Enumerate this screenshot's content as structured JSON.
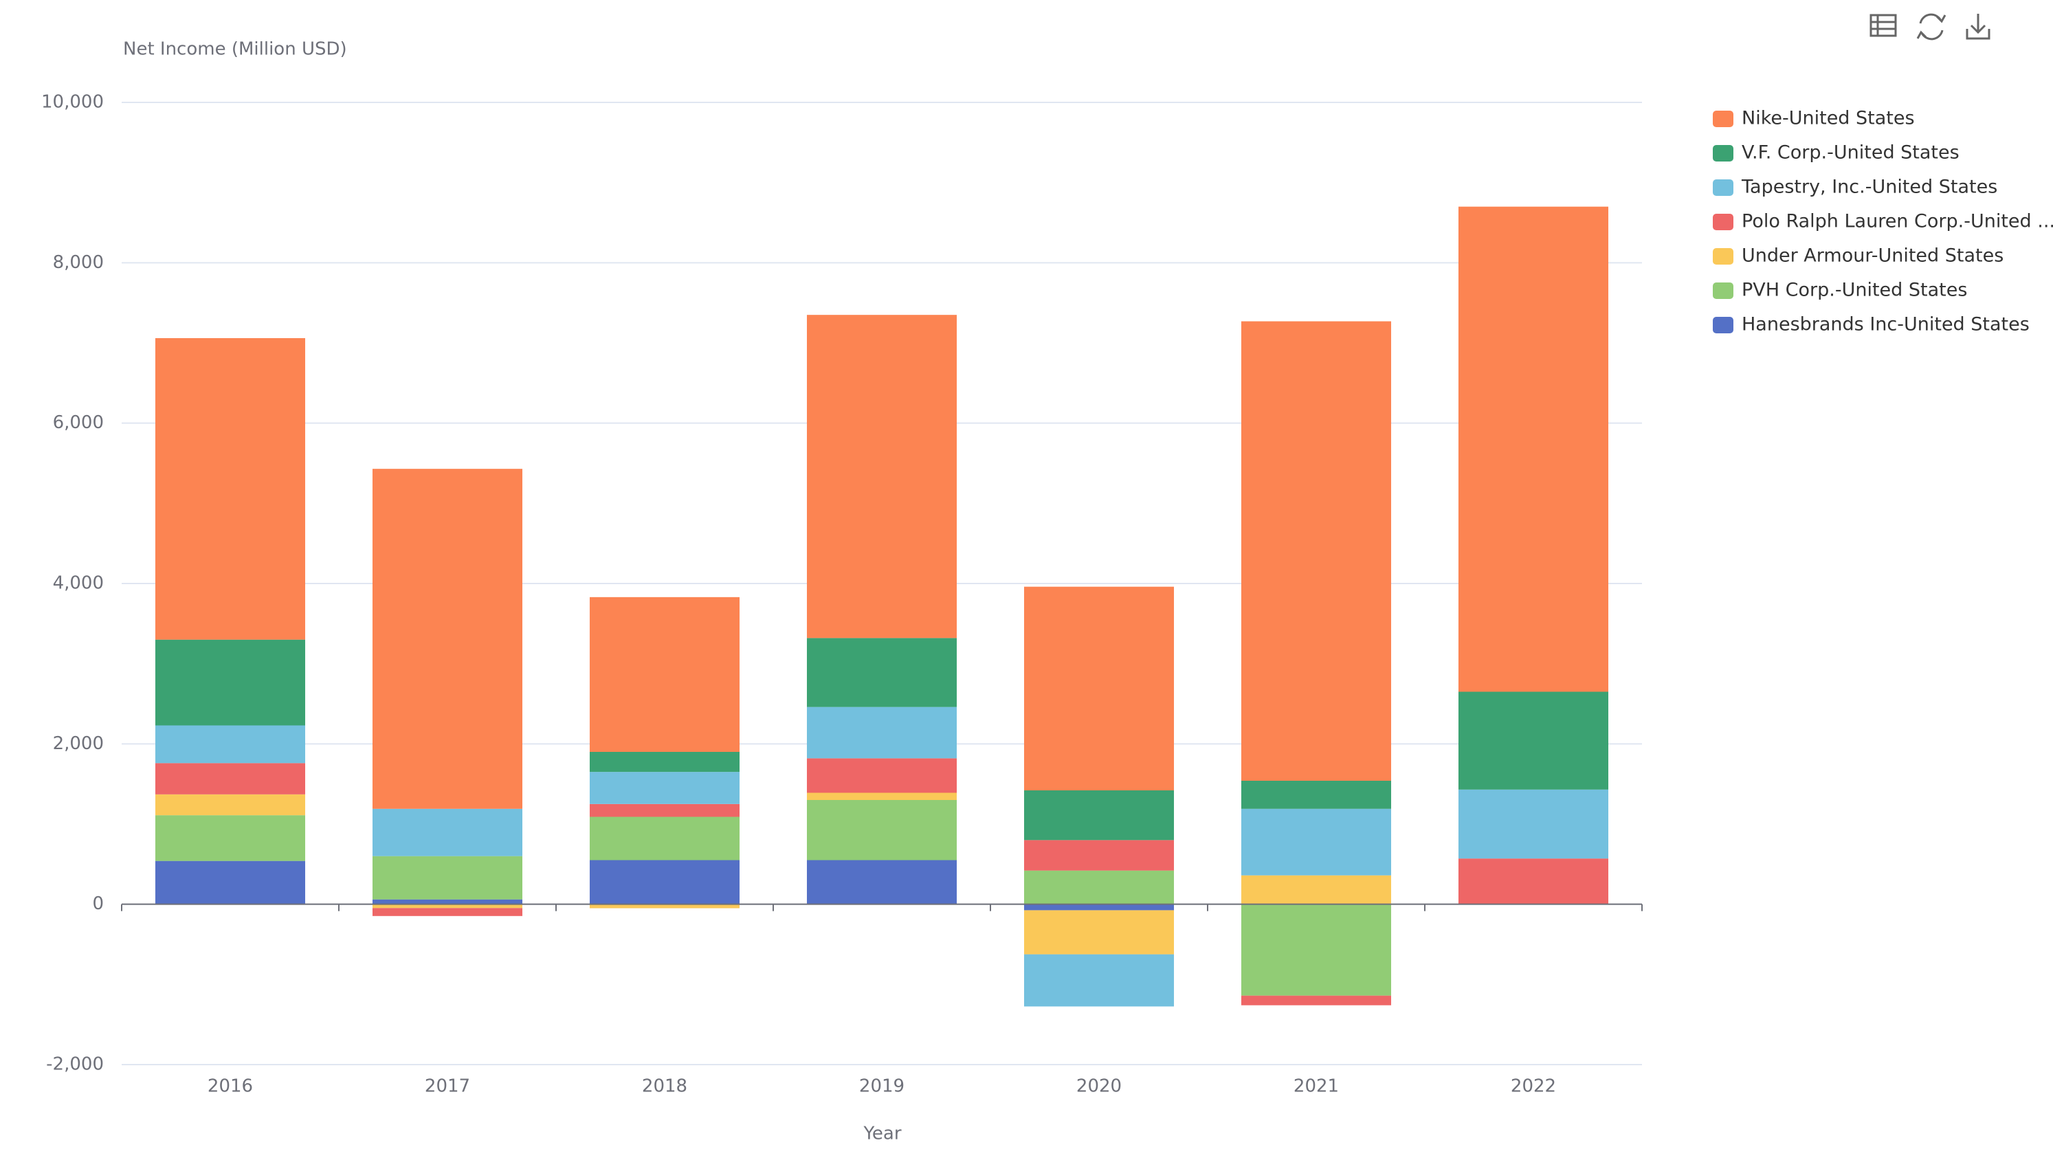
{
  "chart_data": {
    "type": "bar",
    "stacked": true,
    "y_axis_title": "Net Income (Million USD)",
    "x_axis_title": "Year",
    "categories": [
      "2016",
      "2017",
      "2018",
      "2019",
      "2020",
      "2021",
      "2022"
    ],
    "ylim": [
      -2000,
      10000
    ],
    "yticks": [
      {
        "value": -2000,
        "label": "-2,000"
      },
      0,
      {
        "value": 2000,
        "label": "2,000"
      },
      {
        "value": 4000,
        "label": "4,000"
      },
      {
        "value": 6000,
        "label": "6,000"
      },
      {
        "value": 8000,
        "label": "8,000"
      },
      {
        "value": 10000,
        "label": "10,000"
      }
    ],
    "grid": true,
    "legend": "right",
    "series": [
      {
        "name": "Hanesbrands Inc-United States",
        "color": "#5470c6",
        "values": [
          540,
          60,
          550,
          550,
          -75,
          null,
          null
        ]
      },
      {
        "name": "PVH Corp.-United States",
        "color": "#91cc75",
        "values": [
          570,
          540,
          540,
          750,
          420,
          -1140,
          null
        ]
      },
      {
        "name": "Under Armour-United States",
        "color": "#fac858",
        "values": [
          260,
          -48,
          -50,
          90,
          -550,
          360,
          null
        ]
      },
      {
        "name": "Polo Ralph Lauren Corp.-United ...",
        "color": "#ee6666",
        "values": [
          390,
          -99,
          160,
          430,
          380,
          -120,
          570
        ]
      },
      {
        "name": "Tapestry, Inc.-United States",
        "color": "#73c0de",
        "values": [
          470,
          590,
          400,
          640,
          -650,
          830,
          860
        ]
      },
      {
        "name": "V.F. Corp.-United States",
        "color": "#3ba272",
        "values": [
          1070,
          null,
          250,
          860,
          620,
          350,
          1220
        ]
      },
      {
        "name": "Nike-United States",
        "color": "#fc8452",
        "values": [
          3760,
          4240,
          1930,
          4030,
          2540,
          5730,
          6050
        ]
      }
    ]
  }
}
